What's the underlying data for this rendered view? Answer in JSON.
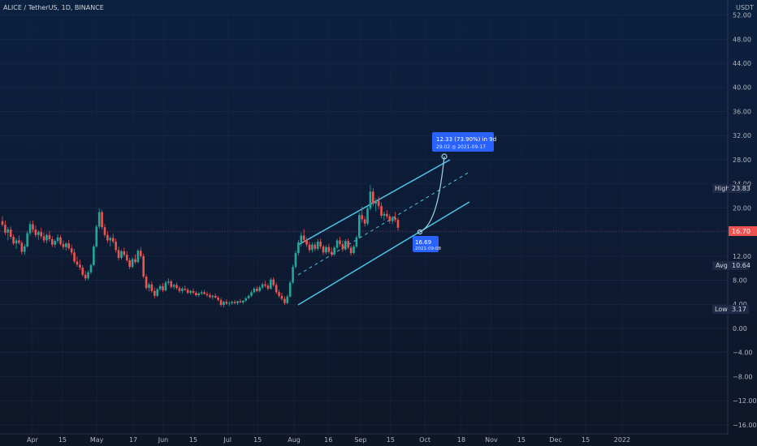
{
  "header": {
    "title": "ALICE / TetherUS, 1D, BINANCE"
  },
  "axis": {
    "currency": "USDT"
  },
  "badges": {
    "high": {
      "label": "High",
      "value": "23.83"
    },
    "avg": {
      "label": "Avg",
      "value": "10.64"
    },
    "low": {
      "label": "Low",
      "value": "3.17"
    },
    "current": {
      "value": "16.70"
    }
  },
  "projection": {
    "line1": "12.33 (73.90%) in 9d",
    "line2": "29.02 ◎ 2021-09-17"
  },
  "marker": {
    "price": "16.69",
    "date": "2021-09-08"
  },
  "colors": {
    "up": "#26a69a",
    "down": "#ef5350",
    "channel": "#4dc4e6",
    "accent": "#2962ff"
  },
  "chart_data": {
    "type": "candlestick",
    "title": "ALICE / TetherUS, 1D, BINANCE",
    "ylim": [
      -17.5,
      54.5
    ],
    "yticks": [
      "52.00",
      "48.00",
      "44.00",
      "40.00",
      "36.00",
      "32.00",
      "28.00",
      "24.00",
      "20.00",
      "16.00",
      "12.00",
      "8.00",
      "4.00",
      "0.00",
      "−4.00",
      "−8.00",
      "−12.00",
      "−16.00"
    ],
    "ytick_values": [
      52,
      48,
      44,
      40,
      36,
      32,
      28,
      24,
      20,
      16,
      12,
      8,
      4,
      0,
      -4,
      -8,
      -12,
      -16
    ],
    "xticks": [
      "Apr",
      "15",
      "May",
      "17",
      "Jun",
      "15",
      "Jul",
      "15",
      "Aug",
      "16",
      "Sep",
      "15",
      "Oct",
      "18",
      "Nov",
      "15",
      "Dec",
      "15",
      "2022"
    ],
    "x_start": "2021-03-18",
    "xtick_days": [
      14,
      28,
      44,
      61,
      75,
      89,
      105,
      119,
      136,
      152,
      167,
      181,
      197,
      214,
      228,
      242,
      258,
      272,
      289
    ],
    "channel": {
      "upper": [
        [
          0,
          0
        ],
        [
          0,
          0
        ]
      ],
      "lower": [
        [
          0,
          0
        ],
        [
          0,
          0
        ]
      ]
    },
    "candles": [
      [
        17.8,
        18.6,
        16.9,
        17.2
      ],
      [
        17.2,
        17.9,
        15.5,
        15.9
      ],
      [
        15.9,
        16.8,
        14.6,
        16.4
      ],
      [
        16.4,
        16.9,
        14.8,
        15.2
      ],
      [
        15.2,
        15.6,
        13.8,
        14.1
      ],
      [
        14.1,
        15.0,
        13.2,
        14.6
      ],
      [
        14.6,
        15.4,
        13.9,
        14.2
      ],
      [
        14.2,
        14.6,
        12.3,
        12.7
      ],
      [
        12.7,
        14.0,
        12.2,
        13.6
      ],
      [
        13.6,
        16.2,
        13.4,
        15.8
      ],
      [
        15.8,
        17.8,
        15.4,
        17.3
      ],
      [
        17.3,
        17.9,
        15.9,
        16.4
      ],
      [
        16.4,
        17.1,
        15.1,
        15.5
      ],
      [
        15.5,
        16.3,
        14.7,
        16.0
      ],
      [
        16.0,
        16.7,
        14.9,
        15.3
      ],
      [
        15.3,
        15.9,
        14.2,
        14.6
      ],
      [
        14.6,
        15.8,
        14.1,
        15.5
      ],
      [
        15.5,
        16.2,
        14.4,
        14.8
      ],
      [
        14.8,
        15.3,
        13.5,
        13.9
      ],
      [
        13.9,
        14.8,
        13.4,
        14.5
      ],
      [
        14.5,
        15.6,
        14.2,
        15.1
      ],
      [
        15.1,
        15.5,
        13.7,
        14.0
      ],
      [
        14.0,
        14.6,
        13.1,
        13.5
      ],
      [
        13.5,
        14.3,
        12.9,
        14.1
      ],
      [
        14.1,
        14.7,
        13.0,
        13.3
      ],
      [
        13.3,
        13.9,
        12.2,
        12.6
      ],
      [
        12.6,
        13.2,
        10.8,
        11.1
      ],
      [
        11.1,
        11.9,
        10.2,
        10.6
      ],
      [
        10.6,
        11.4,
        9.7,
        10.1
      ],
      [
        10.1,
        10.5,
        8.6,
        8.9
      ],
      [
        8.9,
        9.5,
        7.9,
        8.3
      ],
      [
        8.3,
        9.6,
        8.0,
        9.3
      ],
      [
        9.3,
        10.8,
        9.0,
        10.5
      ],
      [
        10.5,
        13.9,
        10.3,
        13.6
      ],
      [
        13.6,
        17.2,
        13.4,
        16.9
      ],
      [
        16.9,
        19.9,
        16.5,
        19.3
      ],
      [
        19.3,
        19.7,
        16.4,
        16.8
      ],
      [
        16.8,
        17.3,
        15.1,
        15.5
      ],
      [
        15.5,
        16.1,
        14.2,
        14.6
      ],
      [
        14.6,
        15.3,
        13.6,
        15.0
      ],
      [
        15.0,
        15.7,
        14.1,
        14.4
      ],
      [
        14.4,
        14.9,
        12.6,
        13.0
      ],
      [
        13.0,
        13.6,
        11.3,
        11.7
      ],
      [
        11.7,
        13.1,
        11.4,
        12.8
      ],
      [
        12.8,
        13.4,
        11.9,
        12.2
      ],
      [
        12.2,
        12.8,
        11.0,
        11.3
      ],
      [
        11.3,
        11.7,
        9.8,
        10.2
      ],
      [
        10.2,
        11.8,
        10.0,
        11.5
      ],
      [
        11.5,
        12.3,
        10.7,
        11.0
      ],
      [
        11.0,
        13.2,
        10.8,
        12.9
      ],
      [
        12.9,
        13.5,
        11.6,
        12.0
      ],
      [
        12.0,
        12.4,
        8.3,
        8.6
      ],
      [
        8.6,
        9.0,
        6.4,
        6.7
      ],
      [
        6.7,
        7.6,
        6.1,
        7.3
      ],
      [
        7.3,
        7.8,
        5.9,
        6.2
      ],
      [
        6.2,
        6.8,
        5.0,
        5.4
      ],
      [
        5.4,
        6.7,
        5.2,
        6.5
      ],
      [
        6.5,
        7.3,
        6.2,
        7.0
      ],
      [
        7.0,
        7.5,
        6.0,
        6.3
      ],
      [
        6.3,
        7.9,
        6.1,
        7.6
      ],
      [
        7.6,
        8.3,
        7.2,
        7.8
      ],
      [
        7.8,
        8.1,
        6.6,
        6.9
      ],
      [
        6.9,
        7.4,
        6.5,
        7.2
      ],
      [
        7.2,
        7.6,
        6.4,
        6.7
      ],
      [
        6.7,
        7.0,
        5.9,
        6.2
      ],
      [
        6.2,
        6.9,
        5.8,
        6.6
      ],
      [
        6.6,
        7.1,
        6.2,
        6.4
      ],
      [
        6.4,
        6.7,
        5.7,
        5.9
      ],
      [
        5.9,
        6.4,
        5.6,
        6.2
      ],
      [
        6.2,
        6.6,
        5.7,
        5.9
      ],
      [
        5.9,
        6.2,
        5.3,
        5.5
      ],
      [
        5.5,
        6.0,
        5.2,
        5.8
      ],
      [
        5.8,
        6.3,
        5.5,
        6.0
      ],
      [
        6.0,
        6.4,
        5.6,
        5.7
      ],
      [
        5.7,
        6.1,
        5.2,
        5.5
      ],
      [
        5.5,
        5.9,
        5.0,
        5.2
      ],
      [
        5.2,
        5.6,
        4.8,
        5.4
      ],
      [
        5.4,
        5.8,
        5.0,
        5.1
      ],
      [
        5.1,
        5.4,
        4.5,
        4.7
      ],
      [
        4.7,
        5.1,
        3.6,
        3.9
      ],
      [
        3.9,
        4.6,
        3.5,
        4.4
      ],
      [
        4.4,
        4.8,
        3.9,
        4.1
      ],
      [
        4.1,
        4.5,
        3.7,
        4.2
      ],
      [
        4.2,
        4.6,
        3.9,
        4.4
      ],
      [
        4.4,
        4.7,
        4.0,
        4.2
      ],
      [
        4.2,
        4.6,
        3.9,
        4.5
      ],
      [
        4.5,
        4.9,
        4.2,
        4.3
      ],
      [
        4.3,
        4.7,
        4.0,
        4.6
      ],
      [
        4.6,
        5.2,
        4.4,
        5.0
      ],
      [
        5.0,
        5.6,
        4.8,
        5.4
      ],
      [
        5.4,
        6.3,
        5.2,
        6.0
      ],
      [
        6.0,
        6.9,
        5.8,
        6.6
      ],
      [
        6.6,
        7.0,
        6.0,
        6.2
      ],
      [
        6.2,
        7.1,
        6.0,
        6.8
      ],
      [
        6.8,
        7.6,
        6.5,
        7.3
      ],
      [
        7.3,
        7.9,
        6.8,
        7.1
      ],
      [
        7.1,
        7.5,
        6.3,
        6.6
      ],
      [
        6.6,
        8.4,
        6.4,
        8.1
      ],
      [
        8.1,
        8.5,
        6.9,
        7.2
      ],
      [
        7.2,
        7.6,
        5.7,
        6.0
      ],
      [
        6.0,
        6.4,
        5.1,
        5.4
      ],
      [
        5.4,
        5.9,
        4.6,
        4.9
      ],
      [
        4.9,
        5.3,
        3.9,
        4.2
      ],
      [
        4.2,
        5.6,
        4.0,
        5.3
      ],
      [
        5.3,
        7.9,
        5.1,
        7.6
      ],
      [
        7.6,
        10.6,
        7.4,
        10.2
      ],
      [
        10.2,
        12.9,
        9.9,
        12.5
      ],
      [
        12.5,
        14.7,
        12.1,
        14.3
      ],
      [
        14.3,
        15.9,
        13.6,
        15.4
      ],
      [
        15.4,
        16.5,
        14.2,
        14.7
      ],
      [
        14.7,
        15.1,
        13.5,
        13.9
      ],
      [
        13.9,
        14.4,
        12.6,
        13.0
      ],
      [
        13.0,
        14.3,
        12.6,
        13.9
      ],
      [
        13.9,
        14.3,
        12.8,
        13.2
      ],
      [
        13.2,
        14.8,
        12.9,
        14.4
      ],
      [
        14.4,
        14.9,
        13.2,
        13.6
      ],
      [
        13.6,
        13.9,
        12.2,
        12.6
      ],
      [
        12.6,
        13.8,
        12.3,
        13.5
      ],
      [
        13.5,
        14.0,
        12.4,
        12.7
      ],
      [
        12.7,
        13.4,
        11.9,
        12.3
      ],
      [
        12.3,
        13.7,
        12.0,
        13.4
      ],
      [
        13.4,
        14.9,
        13.1,
        14.6
      ],
      [
        14.6,
        15.2,
        13.6,
        14.0
      ],
      [
        14.0,
        14.6,
        12.7,
        13.1
      ],
      [
        13.1,
        14.8,
        12.9,
        14.5
      ],
      [
        14.5,
        14.9,
        13.1,
        13.4
      ],
      [
        13.4,
        13.8,
        12.1,
        12.5
      ],
      [
        12.5,
        13.9,
        12.3,
        13.6
      ],
      [
        13.6,
        15.4,
        13.3,
        15.1
      ],
      [
        15.1,
        19.2,
        14.9,
        18.8
      ],
      [
        18.8,
        20.2,
        17.6,
        18.1
      ],
      [
        18.1,
        18.6,
        16.9,
        17.4
      ],
      [
        17.4,
        20.3,
        17.1,
        19.9
      ],
      [
        19.9,
        23.8,
        19.6,
        22.7
      ],
      [
        22.7,
        23.3,
        20.3,
        20.7
      ],
      [
        20.7,
        21.6,
        19.4,
        21.2
      ],
      [
        21.2,
        21.9,
        19.8,
        20.3
      ],
      [
        20.3,
        20.9,
        18.3,
        18.7
      ],
      [
        18.7,
        19.4,
        17.9,
        19.0
      ],
      [
        19.0,
        19.6,
        18.2,
        18.6
      ],
      [
        18.6,
        19.0,
        17.4,
        17.8
      ],
      [
        17.8,
        18.7,
        17.3,
        18.4
      ],
      [
        18.4,
        19.3,
        17.6,
        18.0
      ],
      [
        18.0,
        18.4,
        16.2,
        16.7
      ]
    ]
  }
}
